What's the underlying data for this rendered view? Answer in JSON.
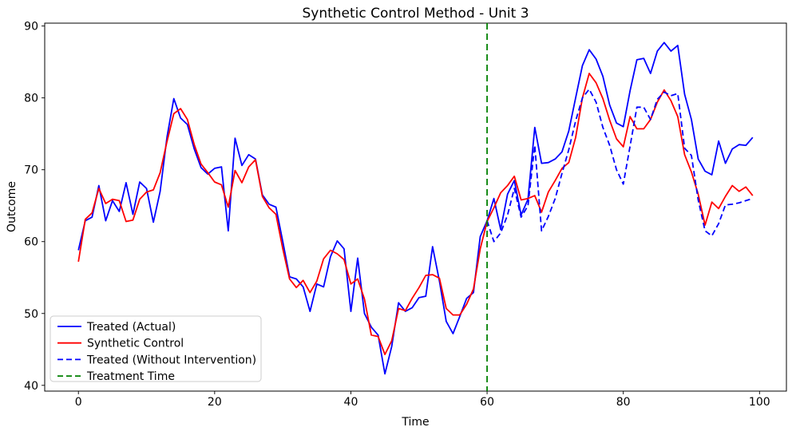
{
  "chart_data": {
    "type": "line",
    "title": "Synthetic Control Method - Unit 3",
    "xlabel": "Time",
    "ylabel": "Outcome",
    "xlim": [
      -4.95,
      103.95
    ],
    "ylim": [
      39.2,
      90.4
    ],
    "xticks": [
      0,
      20,
      40,
      60,
      80,
      100
    ],
    "yticks": [
      40,
      50,
      60,
      70,
      80,
      90
    ],
    "grid": false,
    "legend_position": "lower left",
    "treatment_time": 60,
    "series": [
      {
        "name": "Treated (Actual)",
        "color": "#0000ff",
        "style": "solid",
        "x_start": 0,
        "values": [
          58.8,
          62.9,
          63.4,
          67.8,
          62.9,
          65.7,
          64.2,
          68.2,
          63.8,
          68.3,
          67.4,
          62.7,
          67.0,
          74.5,
          79.9,
          77.2,
          76.3,
          72.9,
          70.3,
          69.4,
          70.2,
          70.4,
          61.5,
          74.4,
          70.6,
          72.1,
          71.5,
          66.5,
          65.2,
          64.8,
          60.0,
          55.1,
          54.8,
          53.7,
          50.3,
          54.1,
          53.7,
          57.9,
          60.1,
          59.0,
          50.3,
          57.7,
          50.0,
          48.1,
          47.0,
          41.6,
          45.4,
          51.5,
          50.3,
          50.8,
          52.2,
          52.4,
          59.3,
          54.5,
          48.9,
          47.2,
          49.6,
          52.1,
          52.9,
          60.7,
          62.9,
          66.0,
          61.7,
          66.6,
          68.5,
          63.7,
          65.9,
          75.9,
          70.9,
          71.0,
          71.5,
          72.5,
          75.4,
          80.0,
          84.5,
          86.7,
          85.4,
          83.0,
          79.0,
          76.5,
          76.0,
          81.0,
          85.3,
          85.5,
          83.4,
          86.5,
          87.7,
          86.5,
          87.3,
          80.5,
          77.0,
          71.5,
          69.8,
          69.3,
          74.0,
          70.9,
          72.9,
          73.5,
          73.4,
          74.5
        ]
      },
      {
        "name": "Synthetic Control",
        "color": "#ff0000",
        "style": "solid",
        "x_start": 0,
        "values": [
          57.2,
          63.1,
          64.0,
          67.4,
          65.3,
          65.9,
          65.7,
          62.8,
          63.0,
          65.9,
          66.9,
          67.2,
          69.6,
          73.9,
          77.8,
          78.5,
          77.0,
          73.5,
          70.8,
          69.6,
          68.3,
          67.9,
          64.8,
          69.9,
          68.2,
          70.4,
          71.4,
          66.3,
          64.7,
          63.8,
          59.0,
          54.8,
          53.6,
          54.6,
          52.9,
          54.5,
          57.6,
          58.8,
          58.3,
          57.5,
          54.1,
          54.8,
          52.0,
          47.0,
          46.8,
          44.3,
          46.2,
          50.7,
          50.4,
          52.1,
          53.6,
          55.3,
          55.4,
          54.9,
          50.7,
          49.8,
          49.8,
          51.3,
          53.4,
          59.0,
          62.8,
          64.7,
          66.8,
          67.8,
          69.1,
          65.8,
          66.0,
          66.4,
          64.1,
          66.9,
          68.5,
          70.2,
          71.0,
          74.5,
          80.0,
          83.4,
          82.1,
          79.9,
          76.9,
          74.3,
          73.2,
          77.4,
          75.7,
          75.7,
          77.0,
          79.4,
          81.1,
          79.6,
          77.4,
          72.1,
          69.7,
          66.6,
          62.3,
          65.5,
          64.6,
          66.3,
          67.8,
          67.0,
          67.6,
          66.4
        ]
      },
      {
        "name": "Treated (Without Intervention)",
        "color": "#0000ff",
        "style": "dashed",
        "x_start": 60,
        "values": [
          62.9,
          60.0,
          61.2,
          63.7,
          67.4,
          63.4,
          65.0,
          73.4,
          61.5,
          63.5,
          66.0,
          69.5,
          72.8,
          76.8,
          80.0,
          81.2,
          79.4,
          75.9,
          73.4,
          70.0,
          68.0,
          73.3,
          78.7,
          78.7,
          77.0,
          79.8,
          80.8,
          80.3,
          80.6,
          73.0,
          72.0,
          65.8,
          61.5,
          60.8,
          62.5,
          65.1,
          65.2,
          65.4,
          65.7,
          66.0
        ]
      },
      {
        "name": "Treatment Time",
        "color": "#008000",
        "style": "dashed-vertical",
        "x": 60
      }
    ]
  }
}
